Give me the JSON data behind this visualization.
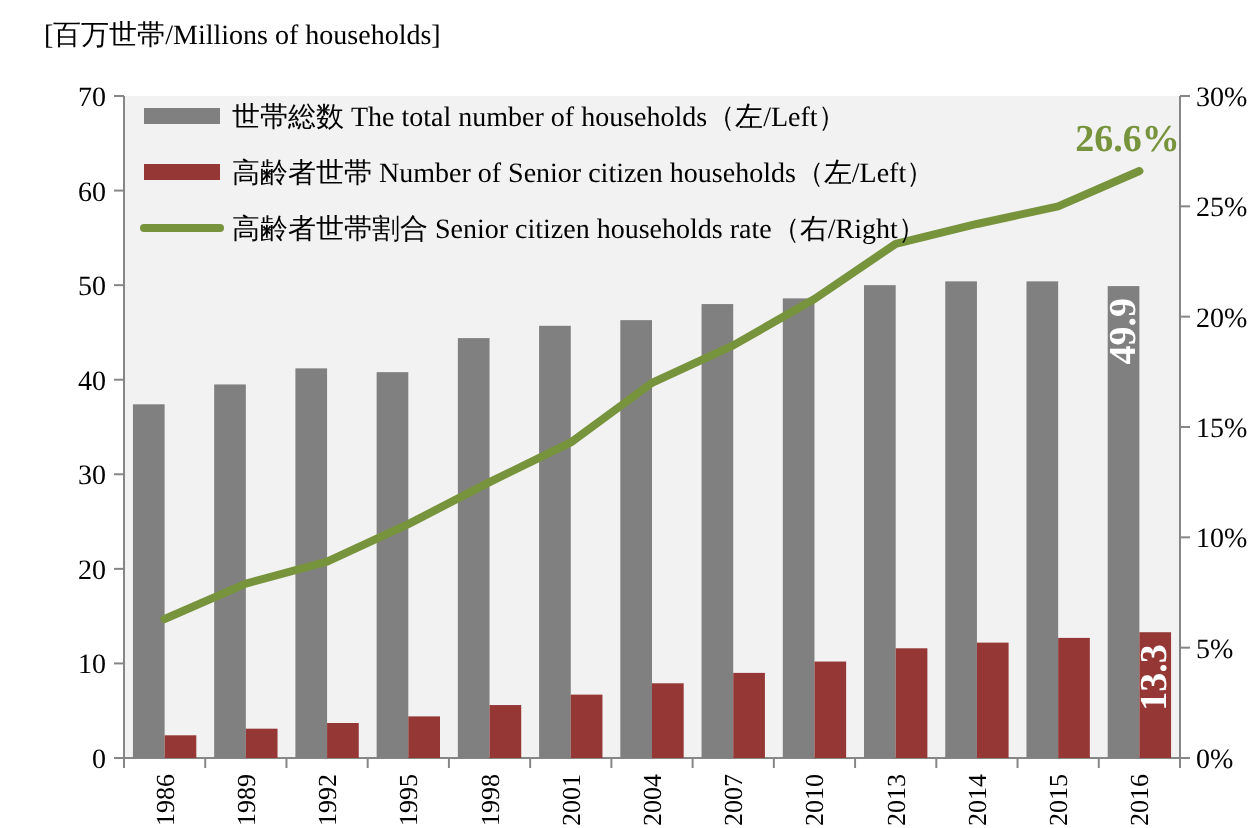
{
  "chart_data": {
    "type": "bar",
    "ylabel": "[百万世帯/Millions of households]",
    "categories": [
      "1986",
      "1989",
      "1992",
      "1995",
      "1998",
      "2001",
      "2004",
      "2007",
      "2010",
      "2013",
      "2014",
      "2015",
      "2016"
    ],
    "series": [
      {
        "name": "世帯総数 The total number of households（左/Left）",
        "color": "#808080",
        "values": [
          37.4,
          39.5,
          41.2,
          40.8,
          44.4,
          45.7,
          46.3,
          48.0,
          48.6,
          50.0,
          50.4,
          50.4,
          49.9
        ],
        "value_labels": [
          null,
          null,
          null,
          null,
          null,
          null,
          null,
          null,
          null,
          null,
          null,
          null,
          "49.9"
        ]
      },
      {
        "name": "高齢者世帯 Number of Senior citizen households（左/Left）",
        "color": "#953735",
        "values": [
          2.4,
          3.1,
          3.7,
          4.4,
          5.6,
          6.7,
          7.9,
          9.0,
          10.2,
          11.6,
          12.2,
          12.7,
          13.3
        ],
        "value_labels": [
          null,
          null,
          null,
          null,
          null,
          null,
          null,
          null,
          null,
          null,
          null,
          null,
          "13.3"
        ]
      },
      {
        "name": "高齢者世帯割合 Senior citizen households rate（右/Right）",
        "type": "line",
        "axis": "y2",
        "color": "#77933c",
        "values": [
          6.3,
          7.9,
          8.9,
          10.6,
          12.5,
          14.3,
          17.0,
          18.7,
          20.8,
          23.3,
          24.2,
          25.0,
          26.6
        ],
        "value_labels": [
          null,
          null,
          null,
          null,
          null,
          null,
          null,
          null,
          null,
          null,
          null,
          null,
          "26.6%"
        ]
      }
    ],
    "ylim": [
      0,
      70
    ],
    "yticks": [
      0,
      10,
      20,
      30,
      40,
      50,
      60,
      70
    ],
    "y2lim": [
      0,
      30
    ],
    "y2ticks": [
      {
        "value": 0,
        "label": "0%"
      },
      {
        "value": 5,
        "label": "5%"
      },
      {
        "value": 10,
        "label": "10%"
      },
      {
        "value": 15,
        "label": "15%"
      },
      {
        "value": 20,
        "label": "20%"
      },
      {
        "value": 25,
        "label": "25%"
      },
      {
        "value": 30,
        "label": "30%"
      }
    ],
    "legend": "top left"
  }
}
